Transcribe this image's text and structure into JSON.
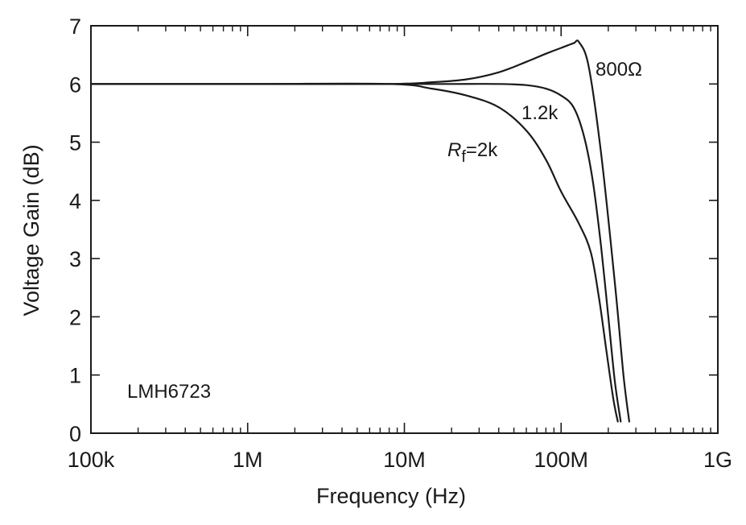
{
  "chart_data": {
    "type": "line",
    "title": "",
    "xlabel": "Frequency (Hz)",
    "ylabel": "Voltage Gain (dB)",
    "xscale": "log",
    "xlim": [
      100000,
      1000000000
    ],
    "ylim": [
      0,
      7
    ],
    "grid": false,
    "x_tick_values": [
      100000,
      1000000,
      10000000,
      100000000,
      1000000000
    ],
    "x_tick_labels": [
      "100k",
      "1M",
      "10M",
      "100M",
      "1G"
    ],
    "y_tick_values": [
      0,
      1,
      2,
      3,
      4,
      5,
      6,
      7
    ],
    "y_tick_labels": [
      "0",
      "1",
      "2",
      "3",
      "4",
      "5",
      "6",
      "7"
    ],
    "annotations": {
      "device": "LMH6723",
      "label_800": "800Ω",
      "label_1k2": "1.2k",
      "label_2k_italic": "R",
      "label_2k_sub": "f",
      "label_2k_rest": "=2k"
    },
    "series": [
      {
        "x": [
          100000,
          1000000,
          8000000,
          15000000,
          25000000,
          40000000,
          60000000,
          80000000,
          100000000,
          120000000,
          130000000,
          150000000,
          180000000,
          220000000,
          250000000,
          272000000
        ],
        "y": [
          6.0,
          6.0,
          6.0,
          6.03,
          6.08,
          6.2,
          6.38,
          6.52,
          6.62,
          6.7,
          6.72,
          6.3,
          4.8,
          2.6,
          1.0,
          0.2
        ]
      },
      {
        "x": [
          100000,
          1000000,
          10000000,
          20000000,
          40000000,
          60000000,
          80000000,
          100000000,
          120000000,
          140000000,
          160000000,
          180000000,
          200000000,
          220000000,
          240000000
        ],
        "y": [
          6.0,
          6.0,
          6.0,
          6.0,
          6.0,
          5.98,
          5.92,
          5.8,
          5.6,
          5.1,
          4.3,
          3.2,
          2.0,
          0.9,
          0.2
        ]
      },
      {
        "x": [
          100000,
          1000000,
          8000000,
          15000000,
          25000000,
          40000000,
          60000000,
          80000000,
          100000000,
          130000000,
          155000000,
          175000000,
          195000000,
          215000000,
          230000000
        ],
        "y": [
          6.0,
          6.0,
          6.0,
          5.92,
          5.8,
          5.6,
          5.2,
          4.7,
          4.15,
          3.6,
          3.1,
          2.3,
          1.4,
          0.6,
          0.2
        ]
      }
    ]
  }
}
